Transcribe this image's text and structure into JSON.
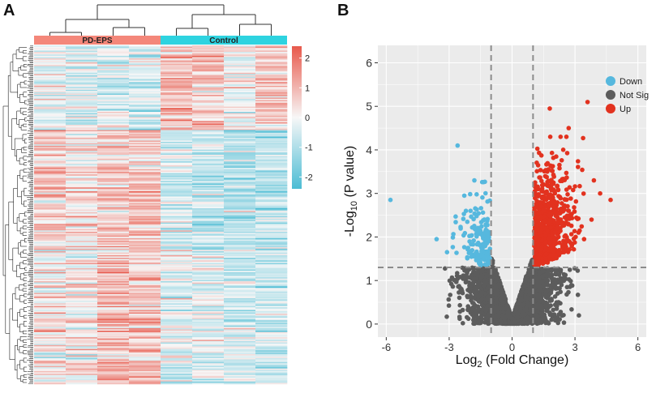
{
  "figure": {
    "panel_a_label": "A",
    "panel_b_label": "B"
  },
  "colors": {
    "pd_group": "#F4877A",
    "control_group": "#2ED3E0",
    "heat_high": "#E8594C",
    "heat_mid": "#F7F7F7",
    "heat_low": "#4BBCD4",
    "down": "#56B8DE",
    "not_sig": "#5C5C5C",
    "up": "#E2321F",
    "panel_bg": "#EBEBEB",
    "grid": "#FFFFFF",
    "threshold": "#8C8C8C"
  },
  "chart_data": [
    {
      "type": "heatmap",
      "groups": [
        {
          "label": "PD-EPS",
          "samples": 4
        },
        {
          "label": "Control",
          "samples": 4
        }
      ],
      "color_scale": {
        "min": -2.4,
        "max": 2.4,
        "ticks": [
          "2",
          "1",
          "0",
          "-1",
          "-2"
        ],
        "tick_values": [
          2,
          1,
          0,
          -1,
          -2
        ]
      },
      "row_count": 260,
      "column_dendrogram": true,
      "row_dendrogram": true,
      "row_patterns": [
        {
          "rows": 65,
          "means": [
            -0.2,
            -0.35,
            -0.3,
            -0.45,
            0.9,
            0.75,
            0.05,
            0.6
          ]
        },
        {
          "rows": 95,
          "means": [
            0.6,
            0.35,
            0.75,
            0.85,
            -0.55,
            -0.7,
            -0.95,
            -0.8
          ]
        },
        {
          "rows": 100,
          "means": [
            0.25,
            0.2,
            0.85,
            0.75,
            -0.35,
            -0.25,
            -0.5,
            -0.6
          ]
        }
      ]
    },
    {
      "type": "scatter",
      "title": "",
      "xlabel_main": "Log",
      "xlabel_sub": "2",
      "xlabel_tail": " (Fold Change)",
      "ylabel_main": "-Log",
      "ylabel_sub": "10",
      "ylabel_tail": " (P value)",
      "xlim": [
        -6.4,
        6.4
      ],
      "ylim": [
        -0.3,
        6.4
      ],
      "xticks": [
        -6,
        -3,
        0,
        3,
        6
      ],
      "xtick_labels": [
        "-6",
        "-3",
        "0",
        "3",
        "6"
      ],
      "yticks": [
        0,
        1,
        2,
        3,
        4,
        5,
        6
      ],
      "ytick_labels": [
        "0",
        "1",
        "2",
        "3",
        "4",
        "5",
        "6"
      ],
      "thresholds": {
        "log2fc": [
          -1,
          1
        ],
        "neglog10p": 1.3
      },
      "legend": {
        "placement": "top-right",
        "entries": [
          {
            "label": "Down",
            "color": "#56B8DE"
          },
          {
            "label": "Not Sig",
            "color": "#5C5C5C"
          },
          {
            "label": "Up",
            "color": "#E2321F"
          }
        ]
      },
      "series": [
        {
          "name": "Down",
          "count": 150,
          "sample_points": [
            [
              -5.8,
              2.85
            ],
            [
              -3.6,
              1.95
            ],
            [
              -2.6,
              4.1
            ],
            [
              -3.1,
              1.65
            ],
            [
              -2.2,
              2.6
            ],
            [
              -1.8,
              3.3
            ]
          ]
        },
        {
          "name": "Not Sig",
          "count": 2600,
          "sample_points": [
            [
              -2.0,
              1.25
            ],
            [
              2.8,
              1.2
            ],
            [
              -0.1,
              0.05
            ],
            [
              1.5,
              0.9
            ],
            [
              -1.4,
              0.7
            ]
          ]
        },
        {
          "name": "Up",
          "count": 750,
          "sample_points": [
            [
              1.8,
              4.95
            ],
            [
              3.6,
              5.1
            ],
            [
              4.7,
              2.85
            ],
            [
              4.2,
              3.0
            ],
            [
              2.7,
              4.5
            ],
            [
              3.9,
              3.3
            ]
          ]
        }
      ]
    }
  ]
}
